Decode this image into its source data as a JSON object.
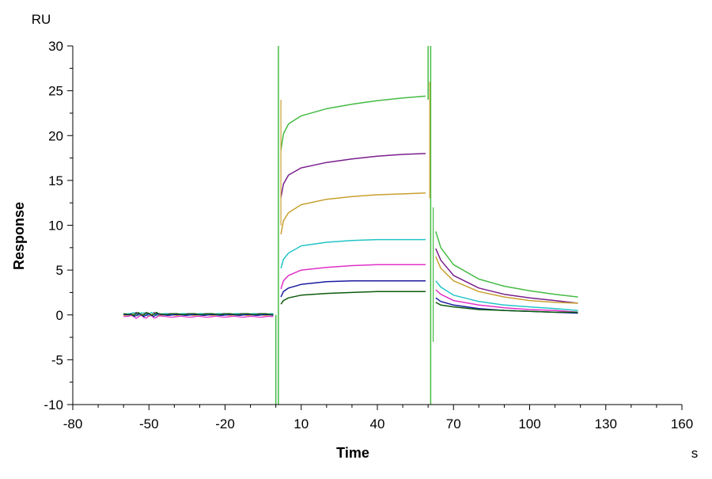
{
  "chart_data": {
    "type": "line",
    "title": "",
    "xlabel": "Time",
    "ylabel": "Response",
    "y_unit": "RU",
    "x_unit": "s",
    "xlim": [
      -80,
      160
    ],
    "ylim": [
      -10,
      30
    ],
    "x_ticks": [
      -80,
      -50,
      -20,
      10,
      40,
      70,
      100,
      130,
      160
    ],
    "y_ticks": [
      -10,
      -5,
      0,
      5,
      10,
      15,
      20,
      25,
      30
    ],
    "x_tick_labels": [
      "-80",
      "-50",
      "-20",
      "10",
      "40",
      "70",
      "100",
      "130",
      "160"
    ],
    "y_tick_labels": [
      "-10",
      "-5",
      "0",
      "5",
      "10",
      "15",
      "20",
      "25",
      "30"
    ],
    "grid": false,
    "legend": "none",
    "series": [
      {
        "color": "#44bb44",
        "baseline": 0.1,
        "assoc_x": [
          2,
          3,
          5,
          10,
          20,
          30,
          40,
          50,
          59
        ],
        "assoc_y": [
          18.4,
          20.2,
          21.3,
          22.2,
          23.0,
          23.5,
          23.9,
          24.2,
          24.4
        ],
        "dissoc_x": [
          63,
          65,
          70,
          80,
          90,
          100,
          110,
          119
        ],
        "dissoc_y": [
          9.3,
          7.5,
          5.6,
          4.0,
          3.2,
          2.7,
          2.3,
          2.0
        ]
      },
      {
        "color": "#7a1f8c",
        "baseline": 0.1,
        "assoc_x": [
          2,
          3,
          5,
          10,
          20,
          30,
          40,
          50,
          59
        ],
        "assoc_y": [
          13.1,
          14.6,
          15.6,
          16.4,
          17.0,
          17.4,
          17.7,
          17.9,
          18.0
        ],
        "dissoc_x": [
          63,
          65,
          70,
          80,
          90,
          100,
          110,
          119
        ],
        "dissoc_y": [
          7.4,
          6.1,
          4.4,
          3.0,
          2.3,
          1.9,
          1.6,
          1.3
        ]
      },
      {
        "color": "#c8a030",
        "baseline": 0.0,
        "assoc_x": [
          2,
          3,
          5,
          10,
          20,
          30,
          40,
          50,
          59
        ],
        "assoc_y": [
          9.0,
          10.5,
          11.4,
          12.3,
          12.9,
          13.2,
          13.4,
          13.5,
          13.6
        ],
        "dissoc_x": [
          63,
          65,
          70,
          80,
          90,
          100,
          110,
          119
        ],
        "dissoc_y": [
          6.5,
          5.2,
          3.8,
          2.6,
          2.0,
          1.6,
          1.4,
          1.3
        ]
      },
      {
        "color": "#22c4c8",
        "baseline": 0.1,
        "assoc_x": [
          2,
          3,
          5,
          10,
          20,
          30,
          40,
          50,
          59
        ],
        "assoc_y": [
          5.2,
          6.2,
          6.9,
          7.7,
          8.1,
          8.3,
          8.4,
          8.4,
          8.4
        ],
        "dissoc_x": [
          63,
          65,
          70,
          80,
          90,
          100,
          110,
          119
        ],
        "dissoc_y": [
          3.8,
          3.1,
          2.2,
          1.5,
          1.1,
          0.9,
          0.7,
          0.5
        ]
      },
      {
        "color": "#e030c8",
        "baseline": -0.2,
        "assoc_x": [
          2,
          3,
          5,
          10,
          20,
          30,
          40,
          50,
          59
        ],
        "assoc_y": [
          2.9,
          3.8,
          4.4,
          5.0,
          5.3,
          5.5,
          5.6,
          5.6,
          5.6
        ],
        "dissoc_x": [
          63,
          65,
          70,
          80,
          90,
          100,
          110,
          119
        ],
        "dissoc_y": [
          2.8,
          2.3,
          1.6,
          1.1,
          0.8,
          0.6,
          0.5,
          0.3
        ]
      },
      {
        "color": "#1a1aa0",
        "baseline": 0.0,
        "assoc_x": [
          2,
          3,
          5,
          10,
          20,
          30,
          40,
          50,
          59
        ],
        "assoc_y": [
          2.0,
          2.6,
          3.0,
          3.4,
          3.7,
          3.8,
          3.8,
          3.8,
          3.8
        ],
        "dissoc_x": [
          63,
          65,
          70,
          80,
          90,
          100,
          110,
          119
        ],
        "dissoc_y": [
          1.9,
          1.5,
          1.1,
          0.7,
          0.5,
          0.4,
          0.3,
          0.2
        ]
      },
      {
        "color": "#0d5a0d",
        "baseline": 0.1,
        "assoc_x": [
          2,
          3,
          5,
          10,
          20,
          30,
          40,
          50,
          59
        ],
        "assoc_y": [
          1.2,
          1.6,
          1.9,
          2.2,
          2.4,
          2.5,
          2.6,
          2.6,
          2.6
        ],
        "dissoc_x": [
          63,
          65,
          70,
          80,
          90,
          100,
          110,
          119
        ],
        "dissoc_y": [
          1.4,
          1.1,
          0.9,
          0.6,
          0.5,
          0.4,
          0.3,
          0.3
        ]
      }
    ],
    "injection_spikes_x": [
      0,
      1,
      60,
      61
    ]
  }
}
